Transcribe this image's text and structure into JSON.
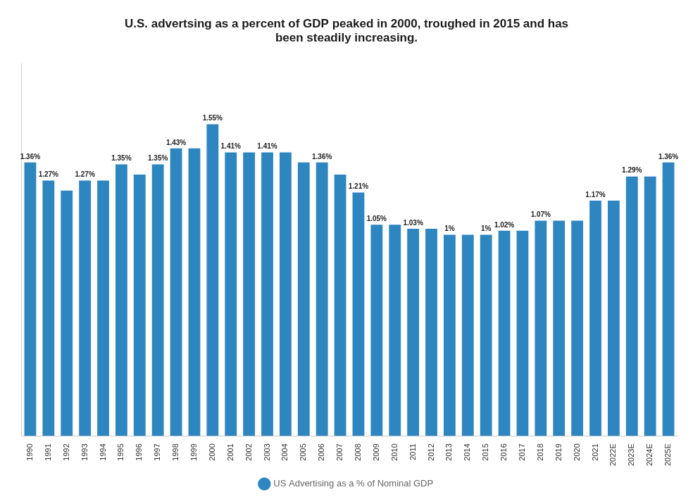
{
  "chart_data": {
    "type": "bar",
    "title": "U.S. advertsing as a percent of GDP peaked in 2000, troughed in 2015 and has\nbeen steadily increasing.",
    "categories": [
      "1990",
      "1991",
      "1992",
      "1993",
      "1994",
      "1995",
      "1996",
      "1997",
      "1998",
      "1999",
      "2000",
      "2001",
      "2002",
      "2003",
      "2004",
      "2005",
      "2006",
      "2007",
      "2008",
      "2009",
      "2010",
      "2011",
      "2012",
      "2013",
      "2014",
      "2015",
      "2016",
      "2017",
      "2018",
      "2019",
      "2020",
      "2021",
      "2022E",
      "2023E",
      "2024E",
      "2025E"
    ],
    "series": [
      {
        "name": "US Advertising as a % of Nominal GDP",
        "color": "#2e86c1",
        "values": [
          1.36,
          1.27,
          1.22,
          1.27,
          1.27,
          1.35,
          1.3,
          1.35,
          1.43,
          1.43,
          1.55,
          1.41,
          1.41,
          1.41,
          1.41,
          1.36,
          1.36,
          1.3,
          1.21,
          1.05,
          1.05,
          1.03,
          1.03,
          1.0,
          1.0,
          1.0,
          1.02,
          1.02,
          1.07,
          1.07,
          1.07,
          1.17,
          1.17,
          1.29,
          1.29,
          1.36
        ],
        "value_labels": [
          "1.36%",
          "1.27%",
          null,
          "1.27%",
          null,
          "1.35%",
          null,
          "1.35%",
          "1.43%",
          null,
          "1.55%",
          "1.41%",
          null,
          "1.41%",
          null,
          null,
          "1.36%",
          null,
          "1.21%",
          "1.05%",
          null,
          "1.03%",
          null,
          "1%",
          null,
          "1%",
          "1.02%",
          null,
          "1.07%",
          null,
          null,
          "1.17%",
          null,
          "1.29%",
          null,
          "1.36%"
        ]
      }
    ],
    "ylim": [
      0,
      1.85
    ],
    "yticks": [],
    "grid": false,
    "legend": "bottom",
    "data_labels": true,
    "tick_labels": "x"
  }
}
